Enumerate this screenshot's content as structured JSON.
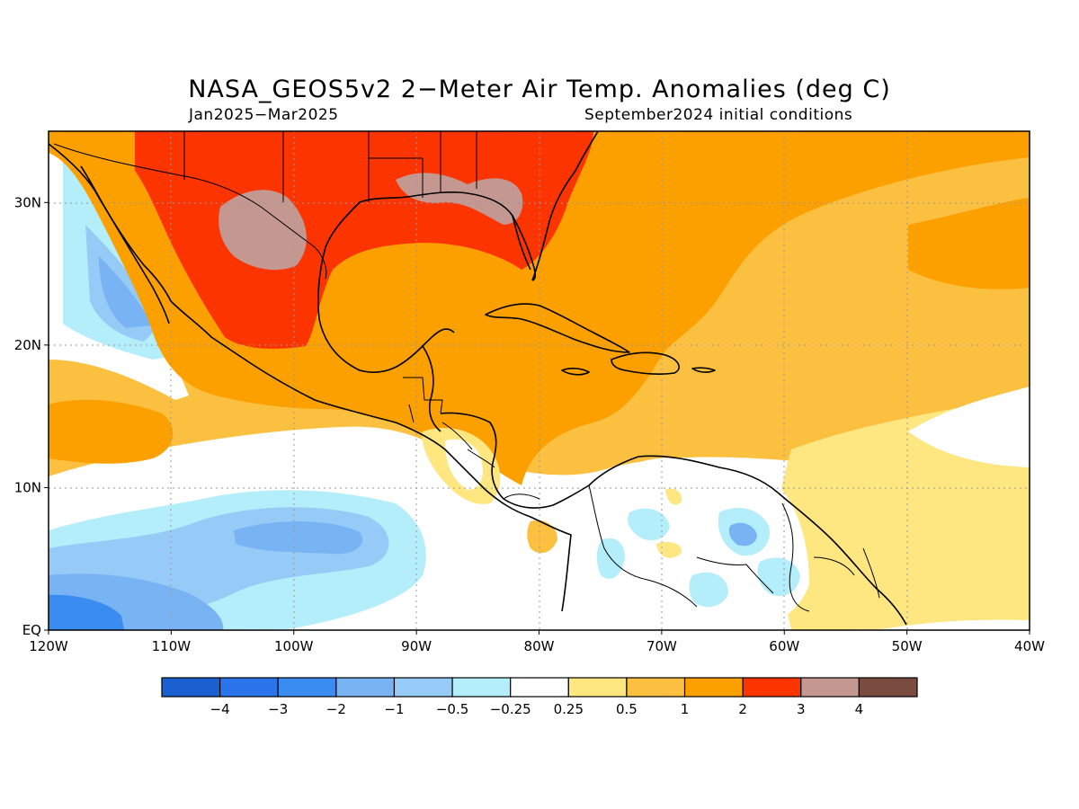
{
  "title": "NASA_GEOS5v2 2−Meter Air Temp. Anomalies (deg C)",
  "subtitle_left": "Jan2025−Mar2025",
  "subtitle_right": "September2024 initial conditions",
  "map": {
    "lon_range": [
      -120,
      -40
    ],
    "lat_range": [
      0,
      35
    ],
    "lon_ticks": [
      {
        "value": -120,
        "label": "120W"
      },
      {
        "value": -110,
        "label": "110W"
      },
      {
        "value": -100,
        "label": "100W"
      },
      {
        "value": -90,
        "label": "90W"
      },
      {
        "value": -80,
        "label": "80W"
      },
      {
        "value": -70,
        "label": "70W"
      },
      {
        "value": -60,
        "label": "60W"
      },
      {
        "value": -50,
        "label": "50W"
      },
      {
        "value": -40,
        "label": "40W"
      }
    ],
    "lat_ticks": [
      {
        "value": 0,
        "label": "EQ"
      },
      {
        "value": 10,
        "label": "10N"
      },
      {
        "value": 20,
        "label": "20N"
      },
      {
        "value": 30,
        "label": "30N"
      }
    ],
    "grid": true
  },
  "colorbar": {
    "colors": [
      "#1a60d0",
      "#2a74ec",
      "#3a8cf0",
      "#78b4f4",
      "#96caf7",
      "#b4eefa",
      "#ffffff",
      "#fee680",
      "#fcc040",
      "#fca000",
      "#fc3400",
      "#c49890",
      "#7a4c40"
    ],
    "labels": [
      "−4",
      "−3",
      "−2",
      "−1",
      "−0.5",
      "−0.25",
      "0.25",
      "0.5",
      "1",
      "2",
      "3",
      "4"
    ]
  }
}
